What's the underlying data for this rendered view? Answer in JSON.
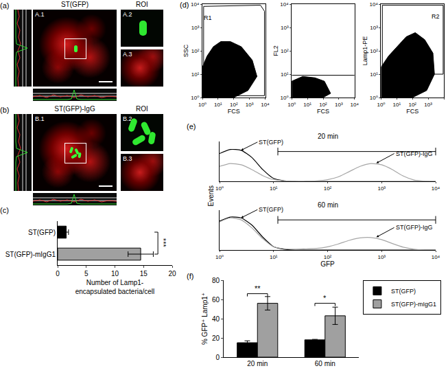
{
  "chart_data": [
    {
      "panel": "(c)",
      "type": "bar",
      "orientation": "horizontal",
      "categories": [
        "ST(GFP)",
        "ST(GFP)-mIgG1"
      ],
      "values": [
        1.5,
        14.5
      ],
      "errors": [
        0.4,
        2.2
      ],
      "colors": [
        "#000000",
        "#a0a0a0"
      ],
      "xlim": [
        0,
        20
      ],
      "xticks": [
        0,
        5,
        10,
        15,
        20
      ],
      "x_label": [
        "Number of Lamp1-",
        "encapsulated bacteria/cell"
      ],
      "grid": false,
      "significance": [
        {
          "text": "***",
          "between": [
            0,
            1
          ],
          "at": 17.5
        }
      ]
    },
    {
      "panel": "(d)",
      "type": "scatter",
      "log": true,
      "grid": false,
      "color": "#000000",
      "xlim": [
        1,
        10000
      ],
      "ylim": [
        1,
        10000
      ],
      "xticks": [
        {
          "value": 1,
          "label": "10⁰"
        },
        {
          "value": 10,
          "label": "10¹"
        },
        {
          "value": 100,
          "label": "10²"
        },
        {
          "value": 1000,
          "label": "10³"
        },
        {
          "value": 10000,
          "label": "10⁴"
        }
      ],
      "yticks": [
        {
          "value": 1,
          "label": "10⁰"
        },
        {
          "value": 10,
          "label": "10¹"
        },
        {
          "value": 100,
          "label": "10²"
        },
        {
          "value": 1000,
          "label": "10³"
        },
        {
          "value": 10000,
          "label": "10⁴"
        }
      ],
      "subplots": [
        {
          "x_label": "FCS",
          "y_label": "SSC",
          "population": {
            "x": [
              1,
              1,
              2,
              5,
              15,
              60,
              300,
              1500,
              3000,
              800,
              100,
              10,
              1
            ],
            "y": [
              1,
              20,
              60,
              150,
              250,
              250,
              150,
              40,
              8,
              2,
              1,
              1,
              1
            ]
          },
          "gate": {
            "name": "R1",
            "x": [
              1.5,
              1.2,
              1.2,
              5000,
              9000,
              9000,
              1.5
            ],
            "y": [
              1.2,
              2,
              8000,
              9000,
              5000,
              1.2,
              1.2
            ],
            "label_x": 2.2,
            "label_y": 2500
          }
        },
        {
          "x_label": "FCS",
          "y_label": "FL2",
          "population": {
            "x": [
              1,
              1,
              5,
              30,
              120,
              300,
              100,
              1
            ],
            "y": [
              1,
              5,
              8,
              7,
              5,
              1.5,
              1,
              1
            ]
          },
          "gate": {
            "x": [
              1,
              10000
            ],
            "y": [
              9,
              9
            ]
          }
        },
        {
          "x_label": "FCS",
          "y_label": "Lamp1-PE",
          "population": {
            "x": [
              1,
              1,
              3,
              10,
              40,
              150,
              600,
              2000,
              2500,
              800,
              100,
              10,
              1
            ],
            "y": [
              1,
              20,
              60,
              150,
              400,
              600,
              300,
              80,
              10,
              2,
              1,
              1,
              1
            ]
          },
          "gate": {
            "name": "R2",
            "x": [
              1.2,
              1.2,
              9000,
              9000,
              1.2
            ],
            "y": [
              10,
              9000,
              9000,
              10,
              10
            ],
            "label_x": 3000,
            "label_y": 3000
          }
        }
      ]
    },
    {
      "panel": "(e)",
      "type": "line",
      "log": "x",
      "grid": false,
      "tick_labels": "x",
      "x": [
        1,
        1.58,
        2.51,
        3.98,
        6.31,
        10,
        15.8,
        25.1,
        39.8,
        63.1,
        100,
        158,
        251,
        398,
        631,
        1000,
        1585,
        2512,
        3981,
        6310,
        10000
      ],
      "xlim": [
        1,
        10000
      ],
      "ylim": [
        0,
        100
      ],
      "xticks": [
        {
          "value": 1,
          "label": "10⁰"
        },
        {
          "value": 10,
          "label": "10¹"
        },
        {
          "value": 100,
          "label": "10²"
        },
        {
          "value": 1000,
          "label": "10³"
        },
        {
          "value": 10000,
          "label": "10⁴"
        }
      ],
      "x_label": "GFP",
      "y_label": "Events",
      "subplots": [
        {
          "label": "20 min",
          "series": [
            {
              "name": "ST(GFP)",
              "color": "#000000",
              "values": [
                70,
                80,
                78,
                60,
                30,
                8,
                2,
                0,
                0,
                0,
                0,
                0,
                0,
                0,
                0,
                0,
                0,
                0,
                0,
                0,
                0
              ]
            },
            {
              "name": "ST(GFP)-IgG",
              "color": "#a6a6a6",
              "values": [
                38,
                45,
                42,
                30,
                15,
                5,
                2,
                1,
                1,
                2,
                5,
                12,
                25,
                38,
                45,
                42,
                30,
                14,
                4,
                1,
                0
              ]
            }
          ],
          "gate": {
            "x": [
              12,
              10000
            ],
            "y": 75
          },
          "annotations": [
            {
              "text": "ST(GFP)",
              "x": 2.5,
              "y": 78
            },
            {
              "text": "ST(GFP)-IgG",
              "x": 800,
              "y": 46
            }
          ]
        },
        {
          "label": "60 min",
          "series": [
            {
              "name": "ST(GFP)",
              "color": "#000000",
              "values": [
                72,
                82,
                80,
                62,
                32,
                8,
                2,
                0,
                0,
                0,
                0,
                0,
                0,
                0,
                0,
                0,
                0,
                0,
                0,
                0,
                0
              ]
            },
            {
              "name": "ST(GFP)-IgG",
              "color": "#a6a6a6",
              "values": [
                70,
                80,
                75,
                55,
                28,
                8,
                3,
                2,
                3,
                4,
                8,
                15,
                24,
                30,
                31,
                26,
                16,
                7,
                2,
                0,
                0
              ]
            }
          ],
          "gate": {
            "x": [
              12,
              10000
            ],
            "y": 75
          },
          "annotations": [
            {
              "text": "ST(GFP)",
              "x": 2.5,
              "y": 80
            },
            {
              "text": "ST(GFP)-IgG",
              "x": 800,
              "y": 32
            }
          ]
        }
      ]
    },
    {
      "panel": "(f)",
      "type": "bar",
      "categories": [
        "20 min",
        "60 min"
      ],
      "grid": false,
      "legend": "upper right",
      "series": [
        {
          "name": "ST(GFP)",
          "color": "#000000",
          "values": [
            15,
            18
          ],
          "errors": [
            2,
            0.5
          ]
        },
        {
          "name": "ST(GFP)-mIgG1",
          "color": "#a0a0a0",
          "values": [
            56,
            43
          ],
          "errors": [
            7,
            9
          ]
        }
      ],
      "ylim": [
        0,
        80
      ],
      "yticks": [
        0,
        20,
        40,
        60,
        80
      ],
      "y_label": "% GFP⁺ Lamp1⁺",
      "significance": [
        {
          "text": "**",
          "category": 0,
          "at": 66
        },
        {
          "text": "*",
          "category": 1,
          "at": 56
        }
      ]
    }
  ],
  "images": [
    {
      "panel": "(a)",
      "title": "ST(GFP)",
      "main": "A.1",
      "roi_title": "ROI",
      "roi": [
        "A.2",
        "A.3"
      ]
    },
    {
      "panel": "(b)",
      "title": "ST(GFP)-IgG",
      "main": "B.1",
      "roi_title": "ROI",
      "roi": [
        "B.2",
        "B.3"
      ]
    }
  ]
}
